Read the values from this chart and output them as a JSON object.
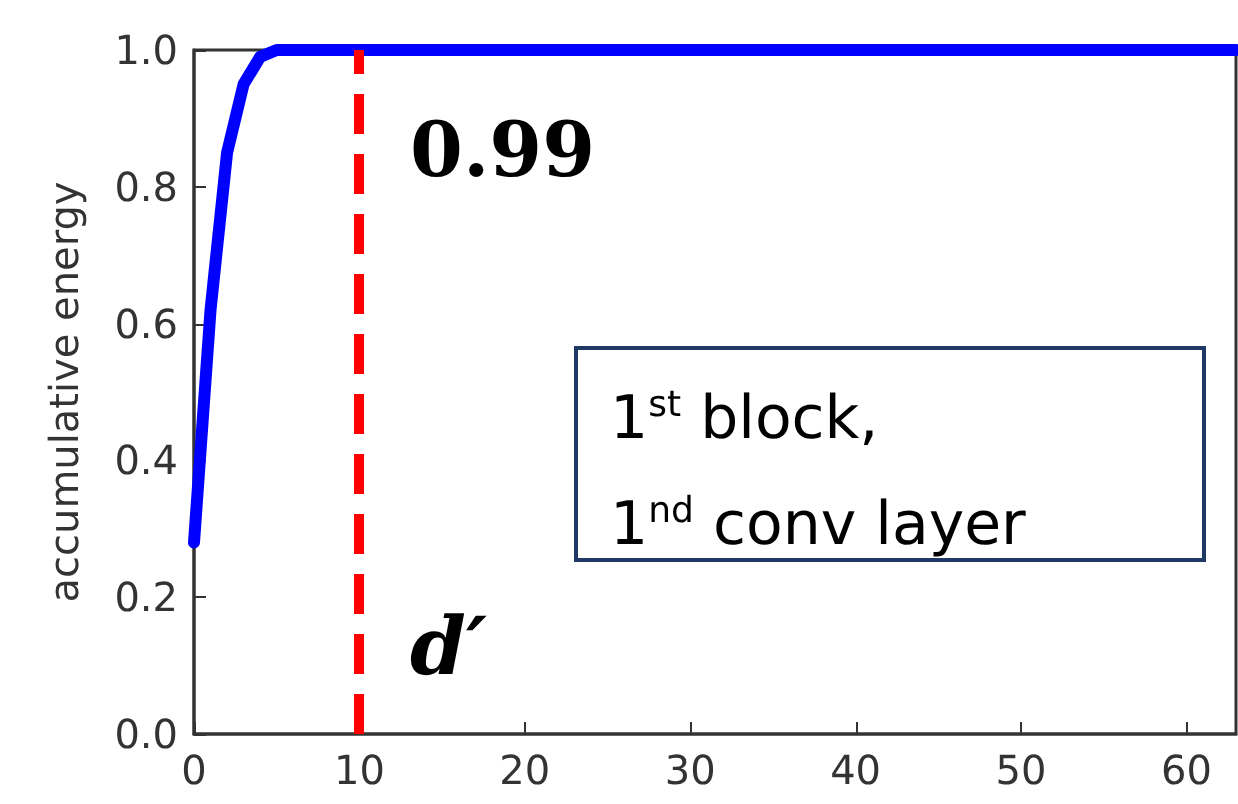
{
  "chart_data": {
    "type": "line",
    "ylabel": "accumulative energy",
    "series": [
      {
        "color": "#0000ff",
        "x": [
          0,
          1,
          2,
          3,
          4,
          5,
          6,
          10,
          20,
          30,
          40,
          50,
          60,
          63
        ],
        "values": [
          0.28,
          0.62,
          0.85,
          0.95,
          0.99,
          1.0,
          1.0,
          1.0,
          1.0,
          1.0,
          1.0,
          1.0,
          1.0,
          1.0
        ]
      }
    ],
    "xlim": [
      0,
      63
    ],
    "xticks": [
      0,
      10,
      20,
      30,
      40,
      50,
      60
    ],
    "ylim": [
      0,
      1
    ],
    "yticks": [
      {
        "value": 0,
        "label": "0.0"
      },
      {
        "value": 0.2,
        "label": "0.2"
      },
      {
        "value": 0.4,
        "label": "0.4"
      },
      {
        "value": 0.6,
        "label": "0.6"
      },
      {
        "value": 0.8,
        "label": "0.8"
      },
      {
        "value": 1,
        "label": "1.0"
      }
    ],
    "ref_lines": [
      {
        "axis": "x",
        "value": 10,
        "color": "#ff0000",
        "line_style": "dashed"
      }
    ],
    "annotations": [
      "0.99",
      "d′",
      "1$^{st}$ block,\n1$^{nd}$ conv layer"
    ],
    "grid": false,
    "marker": "none",
    "line_style": "solid"
  }
}
